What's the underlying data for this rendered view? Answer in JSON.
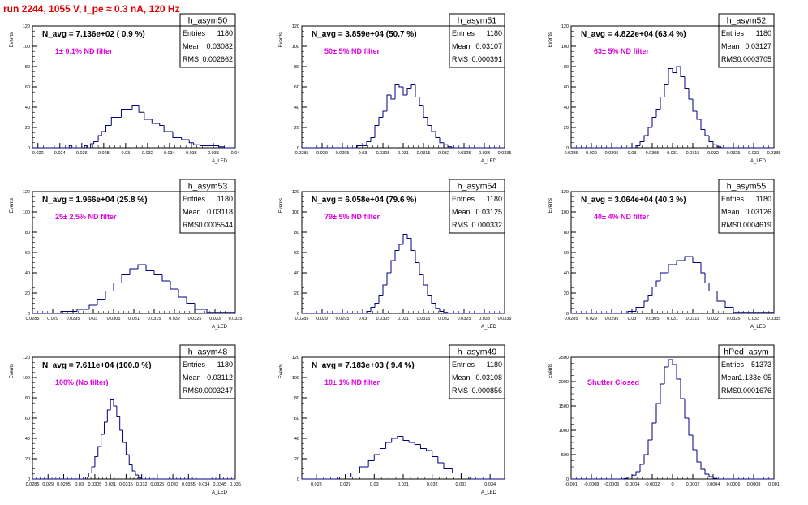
{
  "page_title": "run 2244,  1055 V, I_pe ≈ 0.3 nA, 120 Hz",
  "stats_labels": {
    "entries": "Entries",
    "mean": "Mean",
    "rms": "RMS"
  },
  "colors": {
    "title": "#e00000",
    "annotation": "#e000e0",
    "histogram": "#000080",
    "axis": "#000000"
  },
  "chart_data": [
    {
      "type": "histogram",
      "name": "h_asym50",
      "header": "N_avg = 7.136e+02 ( 0.9 %)",
      "annotation": "1± 0.1% ND filter",
      "entries": "1180",
      "mean": "0.03082",
      "rms": "0.002662",
      "ylabel": "Events",
      "xlabel": "A_LED",
      "xlim": [
        0.0215,
        0.04
      ],
      "ylim": [
        0,
        120
      ],
      "xticks": [
        "0.022",
        "0.024",
        "0.026",
        "0.028",
        "0.03",
        "0.032",
        "0.034",
        "0.036",
        "0.038",
        "0.04"
      ],
      "xtick_values": [
        0.022,
        0.024,
        0.026,
        0.028,
        0.03,
        0.032,
        0.034,
        0.036,
        0.038,
        0.04
      ],
      "yticks": [
        "0",
        "20",
        "40",
        "60",
        "80",
        "100",
        "120"
      ],
      "ytick_values": [
        0,
        20,
        40,
        60,
        80,
        100,
        120
      ],
      "bins": [
        0.0215,
        0.02485,
        0.0251,
        0.02625,
        0.02645,
        0.0268,
        0.0271,
        0.0275,
        0.0278,
        0.0282,
        0.0287,
        0.0296,
        0.0306,
        0.0312,
        0.0317,
        0.0324,
        0.0331,
        0.0335,
        0.0343,
        0.0351,
        0.0358,
        0.0362,
        0.0368,
        0.0385,
        0.039,
        0.04
      ],
      "values": [
        0,
        2,
        0,
        2,
        0,
        4,
        6,
        12,
        16,
        22,
        30,
        38,
        42,
        35,
        28,
        24,
        22,
        16,
        10,
        8,
        5,
        3,
        2,
        1,
        0
      ]
    },
    {
      "type": "histogram",
      "name": "h_asym51",
      "header": "N_avg = 3.859e+04 (50.7 %)",
      "annotation": "50± 5% ND filter",
      "entries": "1180",
      "mean": "0.03107",
      "rms": "0.000391",
      "ylabel": "Events",
      "xlabel": "A_LED",
      "xlim": [
        0.0285,
        0.0335
      ],
      "ylim": [
        0,
        120
      ],
      "xticks": [
        "0.0285",
        "0.029",
        "0.0295",
        "0.03",
        "0.0305",
        "0.031",
        "0.0315",
        "0.032",
        "0.0325",
        "0.033",
        "0.0335"
      ],
      "xtick_values": [
        0.0285,
        0.029,
        0.0295,
        0.03,
        0.0305,
        0.031,
        0.0315,
        0.032,
        0.0325,
        0.033,
        0.0335
      ],
      "yticks": [
        "0",
        "20",
        "40",
        "60",
        "80",
        "100",
        "120"
      ],
      "ytick_values": [
        0,
        20,
        40,
        60,
        80,
        100,
        120
      ],
      "bins": [
        0.0285,
        0.02985,
        0.0301,
        0.0302,
        0.0303,
        0.0304,
        0.0305,
        0.0306,
        0.0307,
        0.0308,
        0.0309,
        0.031,
        0.0311,
        0.0312,
        0.0313,
        0.0314,
        0.0315,
        0.0316,
        0.0317,
        0.0318,
        0.0319,
        0.032,
        0.0321,
        0.0322,
        0.0335
      ],
      "values": [
        0,
        2,
        6,
        10,
        22,
        30,
        36,
        52,
        48,
        62,
        60,
        52,
        58,
        62,
        50,
        42,
        30,
        22,
        16,
        10,
        5,
        3,
        1,
        0
      ]
    },
    {
      "type": "histogram",
      "name": "h_asym52",
      "header": "N_avg = 4.822e+04 (63.4 %)",
      "annotation": "63± 5% ND filter",
      "entries": "1180",
      "mean": "0.03127",
      "rms": "0.0003705",
      "ylabel": "Events",
      "xlabel": "A_LED",
      "xlim": [
        0.0285,
        0.0335
      ],
      "ylim": [
        0,
        120
      ],
      "xticks": [
        "0.0285",
        "0.029",
        "0.0295",
        "0.03",
        "0.0305",
        "0.031",
        "0.0315",
        "0.032",
        "0.0325",
        "0.033",
        "0.0335"
      ],
      "xtick_values": [
        0.0285,
        0.029,
        0.0295,
        0.03,
        0.0305,
        0.031,
        0.0315,
        0.032,
        0.0325,
        0.033,
        0.0335
      ],
      "yticks": [
        "0",
        "20",
        "40",
        "60",
        "80",
        "100",
        "120"
      ],
      "ytick_values": [
        0,
        20,
        40,
        60,
        80,
        100,
        120
      ],
      "bins": [
        0.0285,
        0.0301,
        0.0302,
        0.0303,
        0.0304,
        0.0305,
        0.0306,
        0.0307,
        0.0308,
        0.0309,
        0.031,
        0.0311,
        0.0312,
        0.0313,
        0.0314,
        0.0315,
        0.0316,
        0.0317,
        0.0318,
        0.0319,
        0.032,
        0.0321,
        0.0322,
        0.0335
      ],
      "values": [
        0,
        2,
        6,
        12,
        20,
        30,
        38,
        50,
        62,
        78,
        74,
        80,
        70,
        58,
        48,
        36,
        28,
        18,
        12,
        6,
        3,
        1,
        0
      ]
    },
    {
      "type": "histogram",
      "name": "h_asym53",
      "header": "N_avg = 1.966e+04 (25.8 %)",
      "annotation": "25± 2.5% ND filter",
      "entries": "1180",
      "mean": "0.03118",
      "rms": "0.0005544",
      "ylabel": "Events",
      "xlabel": "A_LED",
      "xlim": [
        0.0285,
        0.0335
      ],
      "ylim": [
        0,
        120
      ],
      "xticks": [
        "0.0285",
        "0.029",
        "0.0295",
        "0.03",
        "0.0305",
        "0.031",
        "0.0315",
        "0.032",
        "0.0325",
        "0.033",
        "0.0335"
      ],
      "xtick_values": [
        0.0285,
        0.029,
        0.0295,
        0.03,
        0.0305,
        0.031,
        0.0315,
        0.032,
        0.0325,
        0.033,
        0.0335
      ],
      "yticks": [
        "0",
        "20",
        "40",
        "60",
        "80",
        "100",
        "120"
      ],
      "ytick_values": [
        0,
        20,
        40,
        60,
        80,
        100,
        120
      ],
      "bins": [
        0.0285,
        0.0292,
        0.0296,
        0.0299,
        0.0301,
        0.0303,
        0.0305,
        0.0307,
        0.0309,
        0.0311,
        0.0313,
        0.0315,
        0.0317,
        0.0319,
        0.0321,
        0.0323,
        0.0325,
        0.0328,
        0.0335
      ],
      "values": [
        0,
        2,
        4,
        8,
        14,
        22,
        30,
        38,
        44,
        48,
        42,
        38,
        32,
        24,
        16,
        10,
        4,
        1
      ]
    },
    {
      "type": "histogram",
      "name": "h_asym54",
      "header": "N_avg = 6.058e+04 (79.6 %)",
      "annotation": "79± 5% ND filter",
      "entries": "1180",
      "mean": "0.03125",
      "rms": "0.000332",
      "ylabel": "Events",
      "xlabel": "A_LED",
      "xlim": [
        0.0285,
        0.0335
      ],
      "ylim": [
        0,
        120
      ],
      "xticks": [
        "0.0285",
        "0.029",
        "0.0295",
        "0.03",
        "0.0305",
        "0.031",
        "0.0315",
        "0.032",
        "0.0325",
        "0.033",
        "0.0335"
      ],
      "xtick_values": [
        0.0285,
        0.029,
        0.0295,
        0.03,
        0.0305,
        0.031,
        0.0315,
        0.032,
        0.0325,
        0.033,
        0.0335
      ],
      "yticks": [
        "0",
        "20",
        "40",
        "60",
        "80",
        "100",
        "120"
      ],
      "ytick_values": [
        0,
        20,
        40,
        60,
        80,
        100,
        120
      ],
      "bins": [
        0.0285,
        0.0301,
        0.0302,
        0.0303,
        0.0304,
        0.0305,
        0.0306,
        0.0307,
        0.0308,
        0.0309,
        0.031,
        0.0311,
        0.0312,
        0.0313,
        0.0314,
        0.0315,
        0.0316,
        0.0317,
        0.0318,
        0.0319,
        0.032,
        0.0321,
        0.0335
      ],
      "values": [
        0,
        2,
        6,
        10,
        18,
        28,
        40,
        52,
        62,
        68,
        78,
        74,
        62,
        50,
        38,
        28,
        18,
        10,
        5,
        2,
        1,
        0
      ]
    },
    {
      "type": "histogram",
      "name": "h_asym55",
      "header": "N_avg = 3.064e+04 (40.3 %)",
      "annotation": "40± 4% ND filter",
      "entries": "1180",
      "mean": "0.03126",
      "rms": "0.0004619",
      "ylabel": "Events",
      "xlabel": "A_LED",
      "xlim": [
        0.0285,
        0.0335
      ],
      "ylim": [
        0,
        120
      ],
      "xticks": [
        "0.0285",
        "0.029",
        "0.0295",
        "0.03",
        "0.0305",
        "0.031",
        "0.0315",
        "0.032",
        "0.0325",
        "0.033",
        "0.0335"
      ],
      "xtick_values": [
        0.0285,
        0.029,
        0.0295,
        0.03,
        0.0305,
        0.031,
        0.0315,
        0.032,
        0.0325,
        0.033,
        0.0335
      ],
      "yticks": [
        "0",
        "20",
        "40",
        "60",
        "80",
        "100",
        "120"
      ],
      "ytick_values": [
        0,
        20,
        40,
        60,
        80,
        100,
        120
      ],
      "bins": [
        0.0285,
        0.0299,
        0.0301,
        0.0303,
        0.0304,
        0.0305,
        0.0306,
        0.0307,
        0.0309,
        0.0311,
        0.0313,
        0.0315,
        0.0317,
        0.0318,
        0.0319,
        0.0321,
        0.0323,
        0.0325,
        0.0335
      ],
      "values": [
        0,
        2,
        6,
        12,
        18,
        26,
        32,
        40,
        48,
        52,
        56,
        50,
        40,
        30,
        22,
        12,
        6,
        1
      ]
    },
    {
      "type": "histogram",
      "name": "h_asym48",
      "header": "N_avg = 7.611e+04 (100.0 %)",
      "annotation": "100% (No filter)",
      "entries": "1180",
      "mean": "0.03112",
      "rms": "0.0003247",
      "ylabel": "Events",
      "xlabel": "A_LED",
      "xlim": [
        0.0285,
        0.035
      ],
      "ylim": [
        0,
        120
      ],
      "xticks": [
        "0.0285",
        "0.029",
        "0.0295",
        "0.03",
        "0.0305",
        "0.031",
        "0.0315",
        "0.032",
        "0.0325",
        "0.033",
        "0.0335",
        "0.034",
        "0.0345",
        "0.035"
      ],
      "xtick_values": [
        0.0285,
        0.029,
        0.0295,
        0.03,
        0.0305,
        0.031,
        0.0315,
        0.032,
        0.0325,
        0.033,
        0.0335,
        0.034,
        0.0345,
        0.035
      ],
      "yticks": [
        "0",
        "20",
        "40",
        "60",
        "80",
        "100",
        "120"
      ],
      "ytick_values": [
        0,
        20,
        40,
        60,
        80,
        100,
        120
      ],
      "bins": [
        0.0285,
        0.0302,
        0.0303,
        0.0304,
        0.0305,
        0.0306,
        0.0307,
        0.0308,
        0.0309,
        0.031,
        0.0311,
        0.0312,
        0.0313,
        0.0314,
        0.0315,
        0.0316,
        0.0317,
        0.0318,
        0.0319,
        0.032,
        0.035
      ],
      "values": [
        0,
        2,
        6,
        12,
        22,
        32,
        44,
        56,
        68,
        78,
        72,
        62,
        48,
        36,
        24,
        14,
        8,
        4,
        1,
        0
      ]
    },
    {
      "type": "histogram",
      "name": "h_asym49",
      "header": "N_avg = 7.183e+03 ( 9.4 %)",
      "annotation": "10± 1% ND filter",
      "entries": "1180",
      "mean": "0.03108",
      "rms": "0.000856",
      "ylabel": "Events",
      "xlabel": "A_LED",
      "xlim": [
        0.0275,
        0.0345
      ],
      "ylim": [
        0,
        120
      ],
      "xticks": [
        "0.028",
        "0.029",
        "0.03",
        "0.031",
        "0.032",
        "0.033",
        "0.034"
      ],
      "xtick_values": [
        0.028,
        0.029,
        0.03,
        0.031,
        0.032,
        0.033,
        0.034
      ],
      "yticks": [
        "0",
        "20",
        "40",
        "60",
        "80",
        "100",
        "120"
      ],
      "ytick_values": [
        0,
        20,
        40,
        60,
        80,
        100,
        120
      ],
      "bins": [
        0.0275,
        0.0288,
        0.0292,
        0.0295,
        0.0298,
        0.03,
        0.0302,
        0.0304,
        0.0306,
        0.0308,
        0.031,
        0.0312,
        0.0314,
        0.0316,
        0.0318,
        0.032,
        0.0322,
        0.0324,
        0.0327,
        0.033,
        0.0333,
        0.0345
      ],
      "values": [
        0,
        2,
        6,
        12,
        18,
        24,
        30,
        36,
        40,
        42,
        38,
        36,
        34,
        30,
        28,
        22,
        16,
        10,
        6,
        2,
        0
      ]
    },
    {
      "type": "histogram",
      "name": "hPed_asym",
      "header": "",
      "annotation": "Shutter Closed",
      "entries": "51373",
      "mean": "-1.133e-05",
      "rms": "0.0001676",
      "ylabel": "Events",
      "xlabel": "",
      "xlim": [
        -0.001,
        0.001
      ],
      "ylim": [
        0,
        2500
      ],
      "xticks": [
        "-0.001",
        "-0.0008",
        "-0.0006",
        "-0.0004",
        "-0.0002",
        "0",
        "0.0002",
        "0.0004",
        "0.0006",
        "0.0008",
        "0.001"
      ],
      "xtick_values": [
        -0.001,
        -0.0008,
        -0.0006,
        -0.0004,
        -0.0002,
        0,
        0.0002,
        0.0004,
        0.0006,
        0.0008,
        0.001
      ],
      "yticks": [
        "0",
        "500",
        "1000",
        "1500",
        "2000",
        "2500"
      ],
      "ytick_values": [
        0,
        500,
        1000,
        1500,
        2000,
        2500
      ],
      "bins": [
        -0.001,
        -0.00048,
        -0.00044,
        -0.0004,
        -0.00036,
        -0.00032,
        -0.00028,
        -0.00024,
        -0.0002,
        -0.00016,
        -0.00012,
        -8e-05,
        -4e-05,
        0,
        4e-05,
        8e-05,
        0.00012,
        0.00016,
        0.0002,
        0.00024,
        0.00028,
        0.00032,
        0.00036,
        0.0004,
        0.00044,
        0.001
      ],
      "values": [
        0,
        10,
        40,
        80,
        150,
        300,
        500,
        800,
        1150,
        1550,
        1950,
        2300,
        2450,
        2350,
        2050,
        1650,
        1250,
        900,
        600,
        350,
        200,
        100,
        50,
        15,
        0
      ]
    }
  ]
}
